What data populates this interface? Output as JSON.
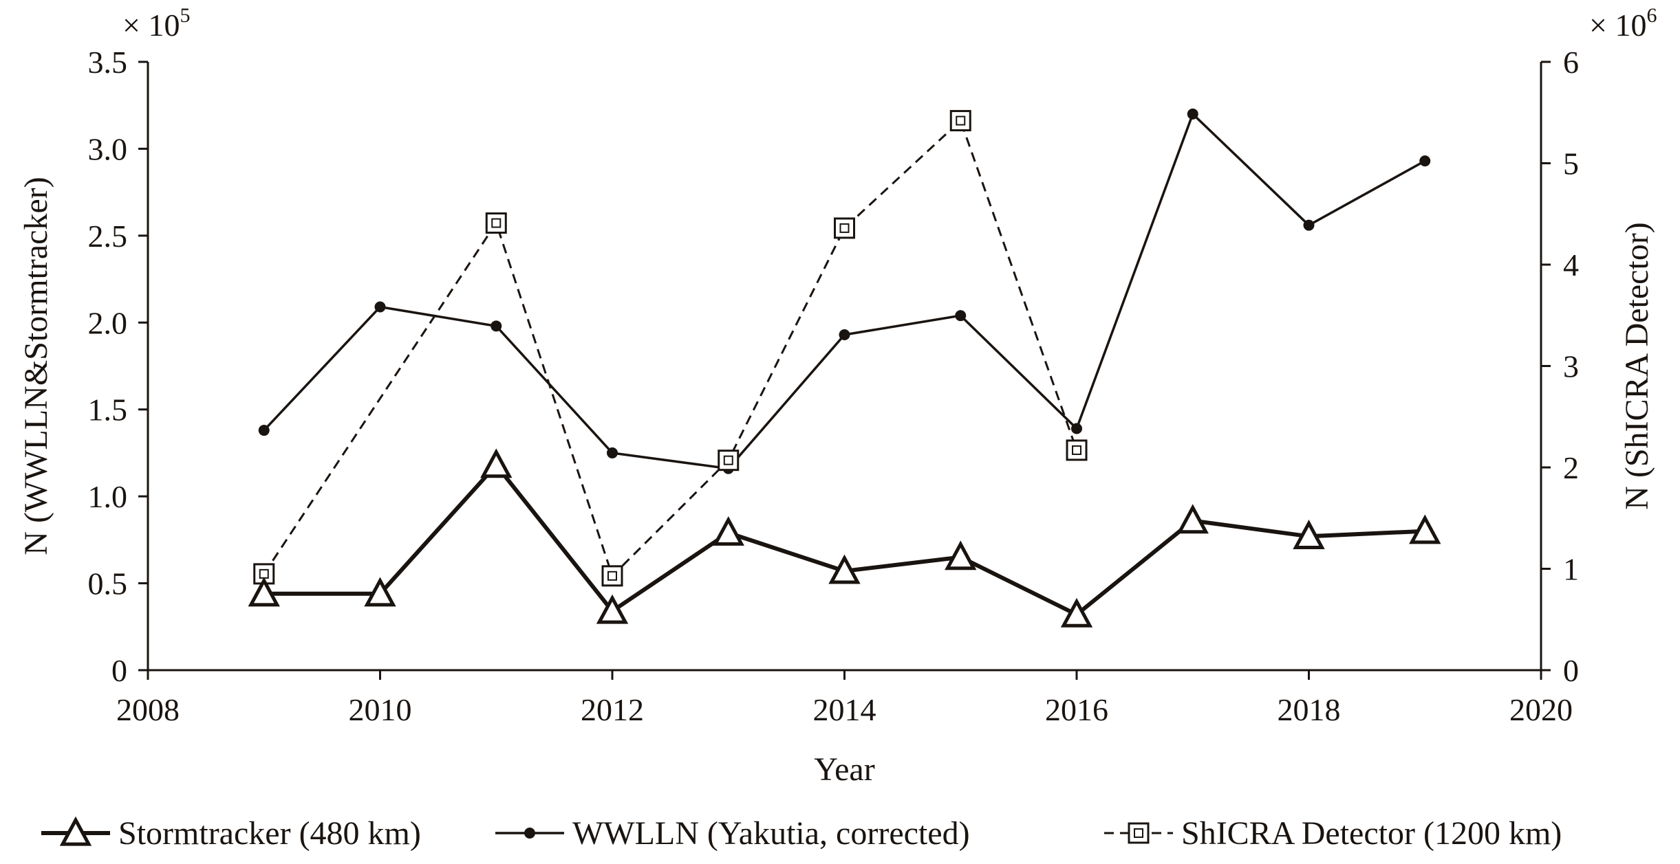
{
  "chart_data": {
    "type": "line",
    "xlabel": "Year",
    "ylabel_left": "N (WWLLN&Stormtracker)",
    "ylabel_right": "N (ShICRA Detector)",
    "left_multiplier": {
      "base": "× 10",
      "exp": "5"
    },
    "right_multiplier": {
      "base": "× 10",
      "exp": "6"
    },
    "xlim": [
      2008,
      2020
    ],
    "ylim_left": [
      0,
      3.5
    ],
    "ylim_right": [
      0,
      6
    ],
    "x_ticks": [
      "2008",
      "2010",
      "2012",
      "2014",
      "2016",
      "2018",
      "2020"
    ],
    "y_left_ticks": [
      "0",
      "0.5",
      "1.0",
      "1.5",
      "2.0",
      "2.5",
      "3.0",
      "3.5"
    ],
    "y_right_ticks": [
      "0",
      "1",
      "2",
      "3",
      "4",
      "5",
      "6"
    ],
    "series": [
      {
        "name": "Stormtracker (480 km)",
        "axis": "left",
        "marker": "triangle",
        "line": "solid-thick",
        "points": [
          [
            2009,
            0.44
          ],
          [
            2010,
            0.44
          ],
          [
            2011,
            1.18
          ],
          [
            2012,
            0.34
          ],
          [
            2013,
            0.79
          ],
          [
            2014,
            0.57
          ],
          [
            2015,
            0.65
          ],
          [
            2016,
            0.32
          ],
          [
            2017,
            0.86
          ],
          [
            2018,
            0.77
          ],
          [
            2019,
            0.8
          ]
        ]
      },
      {
        "name": "WWLLN (Yakutia, corrected)",
        "axis": "left",
        "marker": "dot",
        "line": "solid",
        "points": [
          [
            2009,
            1.38
          ],
          [
            2010,
            2.09
          ],
          [
            2011,
            1.98
          ],
          [
            2012,
            1.25
          ],
          [
            2013,
            1.16
          ],
          [
            2014,
            1.93
          ],
          [
            2015,
            2.04
          ],
          [
            2016,
            1.39
          ],
          [
            2017,
            3.2
          ],
          [
            2018,
            2.56
          ],
          [
            2019,
            2.93
          ]
        ]
      },
      {
        "name": "ShICRA Detector (1200 km)",
        "axis": "right",
        "marker": "square",
        "line": "dashed",
        "points": [
          [
            2009,
            0.95
          ],
          [
            2011,
            4.41
          ],
          [
            2012,
            0.93
          ],
          [
            2013,
            2.07
          ],
          [
            2014,
            4.36
          ],
          [
            2015,
            5.42
          ],
          [
            2016,
            2.17
          ]
        ]
      }
    ]
  }
}
